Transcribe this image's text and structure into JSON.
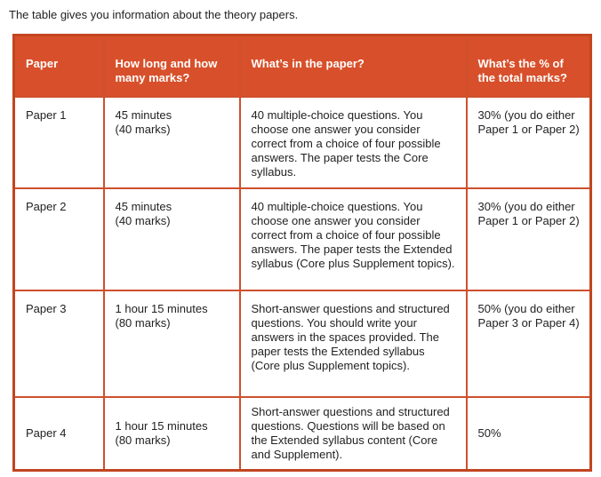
{
  "page": {
    "intro": "The table gives you information about the theory papers."
  },
  "colors": {
    "header_bg": "#D8502B",
    "border_inner": "#CE502C",
    "border_outer": "#C24520",
    "header_text": "#FFFFFF",
    "body_text": "#222222"
  },
  "table": {
    "columns": [
      {
        "label": "Paper"
      },
      {
        "label": [
          "How long and how",
          "many marks?"
        ]
      },
      {
        "label": "What’s in the paper?"
      },
      {
        "label": [
          "What’s the % of",
          "the total marks?"
        ]
      }
    ],
    "rows": [
      {
        "paper": "Paper 1",
        "duration": [
          "45 minutes",
          "(40 marks)"
        ],
        "contents": [
          "40 multiple-choice questions. You",
          "choose one answer you consider",
          "correct from a choice of four possible",
          "answers. The paper tests the Core",
          "syllabus."
        ],
        "percent": [
          "30% (you do either",
          "Paper 1 or Paper 2)"
        ]
      },
      {
        "paper": "Paper 2",
        "duration": [
          "45 minutes",
          "(40 marks)"
        ],
        "contents": [
          "40 multiple-choice questions. You",
          "choose one answer you consider",
          "correct from a choice of four possible",
          "answers. The paper tests the Extended",
          "syllabus (Core plus Supplement topics)."
        ],
        "percent": [
          "30% (you do either",
          "Paper 1 or Paper 2)"
        ]
      },
      {
        "paper": "Paper 3",
        "duration": [
          "1 hour 15 minutes",
          "(80 marks)"
        ],
        "contents": [
          "Short-answer questions and structured",
          "questions. You should write your",
          "answers in the spaces provided. The",
          "paper tests the Extended syllabus",
          "(Core plus Supplement topics)."
        ],
        "percent": [
          "50% (you do either",
          "Paper 3 or Paper 4)"
        ]
      },
      {
        "paper": "Paper 4",
        "duration": [
          "1 hour 15 minutes",
          "(80 marks)"
        ],
        "contents": [
          "Short-answer questions and structured",
          "questions. Questions will be based on",
          "the Extended syllabus content (Core",
          "and Supplement)."
        ],
        "percent": "50%"
      }
    ]
  }
}
